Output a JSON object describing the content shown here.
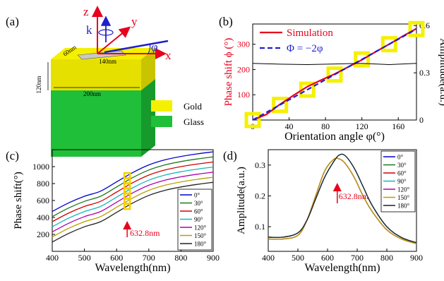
{
  "panels": {
    "a": {
      "label": "(a)",
      "axes": {
        "z": "z",
        "y": "y",
        "x": "x",
        "k": "k",
        "phi": "φ"
      },
      "dims": {
        "d60": "60nm",
        "d140": "140nm",
        "d120": "120nm",
        "d200": "200nm"
      },
      "legend": {
        "gold": "Gold",
        "glass": "Glass"
      },
      "colors": {
        "gold_top": "#f5f000",
        "gold_side": "#d8d400",
        "glass_front": "#1fbf3a",
        "glass_side": "#169a2c",
        "axis_red": "#e8001c",
        "axis_blue": "#1f1fcc"
      }
    },
    "b": {
      "label": "(b)"
    },
    "c": {
      "label": "(c)",
      "arrow_label": "632.8nm"
    },
    "d": {
      "label": "(d)",
      "arrow_label": "632.8nm"
    }
  },
  "chart_data": [
    {
      "id": "b",
      "type": "line",
      "xlabel": "Orientation angle φ(°)",
      "ylabel": "Phase shift ϕ (°)",
      "y2label": "Amplitude(a.u.)",
      "xlim": [
        0,
        180
      ],
      "ylim": [
        0,
        380
      ],
      "y2lim": [
        0,
        0.61
      ],
      "xticks": [
        0,
        40,
        80,
        120,
        160
      ],
      "yticks": [
        100,
        200,
        300
      ],
      "y2ticks": [
        0,
        0.3,
        0.6
      ],
      "legend_position": "top-center",
      "series": [
        {
          "name": "Simulation",
          "color": "#e8001c",
          "axis": "left",
          "style": "solid",
          "x": [
            0,
            15,
            30,
            45,
            60,
            75,
            90,
            105,
            120,
            135,
            150,
            165,
            180
          ],
          "y": [
            0,
            22,
            62,
            98,
            132,
            158,
            182,
            210,
            238,
            270,
            300,
            332,
            362
          ]
        },
        {
          "name": "Φ = −2φ",
          "color": "#1f1fcc",
          "axis": "left",
          "style": "dashed",
          "x": [
            0,
            180
          ],
          "y": [
            0,
            360
          ]
        },
        {
          "name": "",
          "color": "#000000",
          "axis": "right",
          "style": "solid",
          "x": [
            0,
            30,
            60,
            90,
            120,
            150,
            180
          ],
          "y": [
            0.36,
            0.355,
            0.352,
            0.356,
            0.36,
            0.352,
            0.36
          ]
        }
      ],
      "markers": {
        "color": "#f5f000",
        "x": [
          0,
          30,
          60,
          90,
          120,
          150,
          180
        ],
        "y": [
          0,
          60,
          120,
          180,
          240,
          300,
          360
        ]
      }
    },
    {
      "id": "c",
      "type": "line",
      "xlabel": "Wavelength(nm)",
      "ylabel": "Phase shift(°)",
      "xlim": [
        400,
        900
      ],
      "ylim": [
        0,
        1200
      ],
      "xticks": [
        400,
        500,
        600,
        700,
        800,
        900
      ],
      "yticks": [
        200,
        400,
        600,
        800,
        1000
      ],
      "legend_position": "right",
      "highlight_x": 632.8,
      "x": [
        400,
        450,
        500,
        550,
        600,
        650,
        700,
        750,
        800,
        850,
        900
      ],
      "series": [
        {
          "name": "0°",
          "color": "#0000cc",
          "values": [
            470,
            570,
            650,
            710,
            820,
            930,
            1020,
            1080,
            1120,
            1150,
            1175
          ]
        },
        {
          "name": "30°",
          "color": "#1a7a1a",
          "values": [
            410,
            510,
            590,
            650,
            760,
            870,
            960,
            1020,
            1060,
            1090,
            1115
          ]
        },
        {
          "name": "60°",
          "color": "#d40000",
          "values": [
            350,
            450,
            530,
            590,
            700,
            810,
            900,
            960,
            1000,
            1030,
            1055
          ]
        },
        {
          "name": "90°",
          "color": "#16b8b8",
          "values": [
            290,
            390,
            470,
            530,
            640,
            750,
            840,
            900,
            940,
            970,
            995
          ]
        },
        {
          "name": "120°",
          "color": "#b000b0",
          "values": [
            230,
            330,
            410,
            470,
            580,
            690,
            780,
            840,
            880,
            910,
            935
          ]
        },
        {
          "name": "150°",
          "color": "#b8a000",
          "values": [
            170,
            270,
            350,
            410,
            520,
            630,
            720,
            780,
            820,
            850,
            875
          ]
        },
        {
          "name": "180°",
          "color": "#222222",
          "values": [
            110,
            210,
            290,
            350,
            460,
            570,
            660,
            720,
            760,
            790,
            815
          ]
        }
      ]
    },
    {
      "id": "d",
      "type": "line",
      "xlabel": "Wavelength(nm)",
      "ylabel": "Amplitude(a.u.)",
      "xlim": [
        400,
        900
      ],
      "ylim": [
        0.02,
        0.35
      ],
      "xticks": [
        400,
        500,
        600,
        700,
        800,
        900
      ],
      "yticks": [
        0.1,
        0.2,
        0.3
      ],
      "legend_position": "top-right",
      "highlight_x": 632.8,
      "x": [
        400,
        450,
        500,
        530,
        560,
        590,
        620,
        640,
        660,
        690,
        720,
        750,
        800,
        850,
        900
      ],
      "series": [
        {
          "name": "0°",
          "color": "#0000cc",
          "values": [
            0.066,
            0.066,
            0.08,
            0.12,
            0.19,
            0.26,
            0.31,
            0.333,
            0.33,
            0.29,
            0.23,
            0.17,
            0.1,
            0.065,
            0.048
          ]
        },
        {
          "name": "30°",
          "color": "#1a7a1a",
          "values": [
            0.06,
            0.06,
            0.072,
            0.12,
            0.2,
            0.28,
            0.318,
            0.32,
            0.305,
            0.26,
            0.2,
            0.15,
            0.09,
            0.06,
            0.045
          ]
        },
        {
          "name": "60°",
          "color": "#d40000",
          "values": [
            0.06,
            0.06,
            0.072,
            0.12,
            0.2,
            0.28,
            0.318,
            0.32,
            0.305,
            0.26,
            0.2,
            0.15,
            0.09,
            0.06,
            0.045
          ]
        },
        {
          "name": "90°",
          "color": "#16b8b8",
          "values": [
            0.066,
            0.066,
            0.08,
            0.12,
            0.19,
            0.26,
            0.31,
            0.333,
            0.33,
            0.29,
            0.23,
            0.17,
            0.1,
            0.065,
            0.048
          ]
        },
        {
          "name": "120°",
          "color": "#b000b0",
          "values": [
            0.06,
            0.06,
            0.072,
            0.12,
            0.2,
            0.28,
            0.318,
            0.32,
            0.305,
            0.26,
            0.2,
            0.15,
            0.09,
            0.06,
            0.045
          ]
        },
        {
          "name": "150°",
          "color": "#b8a000",
          "values": [
            0.06,
            0.06,
            0.072,
            0.12,
            0.2,
            0.28,
            0.318,
            0.32,
            0.305,
            0.26,
            0.2,
            0.15,
            0.09,
            0.06,
            0.045
          ]
        },
        {
          "name": "180°",
          "color": "#222222",
          "values": [
            0.066,
            0.066,
            0.08,
            0.12,
            0.19,
            0.26,
            0.31,
            0.333,
            0.33,
            0.29,
            0.23,
            0.17,
            0.1,
            0.065,
            0.048
          ]
        }
      ]
    }
  ]
}
